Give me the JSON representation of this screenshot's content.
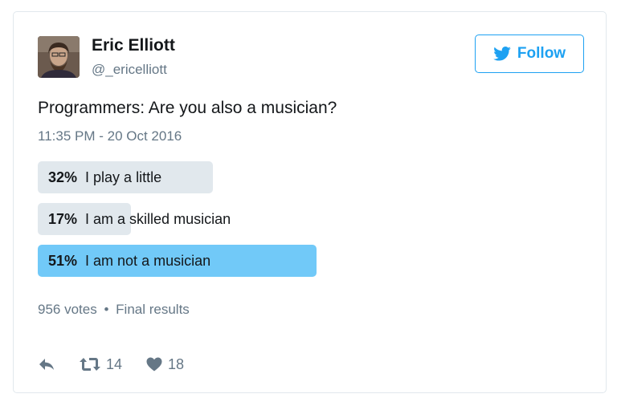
{
  "tweet": {
    "author_name": "Eric Elliott",
    "author_handle": "@_ericelliott",
    "follow_label": "Follow",
    "text": "Programmers: Are you also a musician?",
    "timestamp": "11:35 PM - 20 Oct 2016"
  },
  "poll": {
    "options": [
      {
        "percent_label": "32%",
        "label": "I play a little",
        "value": 32,
        "winner": false
      },
      {
        "percent_label": "17%",
        "label": "I am a skilled musician",
        "value": 17,
        "winner": false
      },
      {
        "percent_label": "51%",
        "label": "I am not a musician",
        "value": 51,
        "winner": true
      }
    ],
    "votes": "956 votes",
    "separator": "•",
    "status": "Final results"
  },
  "actions": {
    "retweet_count": "14",
    "like_count": "18"
  },
  "colors": {
    "accent": "#1da1f2",
    "winner_bar": "#71c9f8",
    "bar": "#e1e8ed",
    "muted_text": "#657786"
  },
  "icons": {
    "avatar": "avatar",
    "bird": "twitter-bird-icon",
    "reply": "reply-icon",
    "retweet": "retweet-icon",
    "like": "heart-icon"
  }
}
